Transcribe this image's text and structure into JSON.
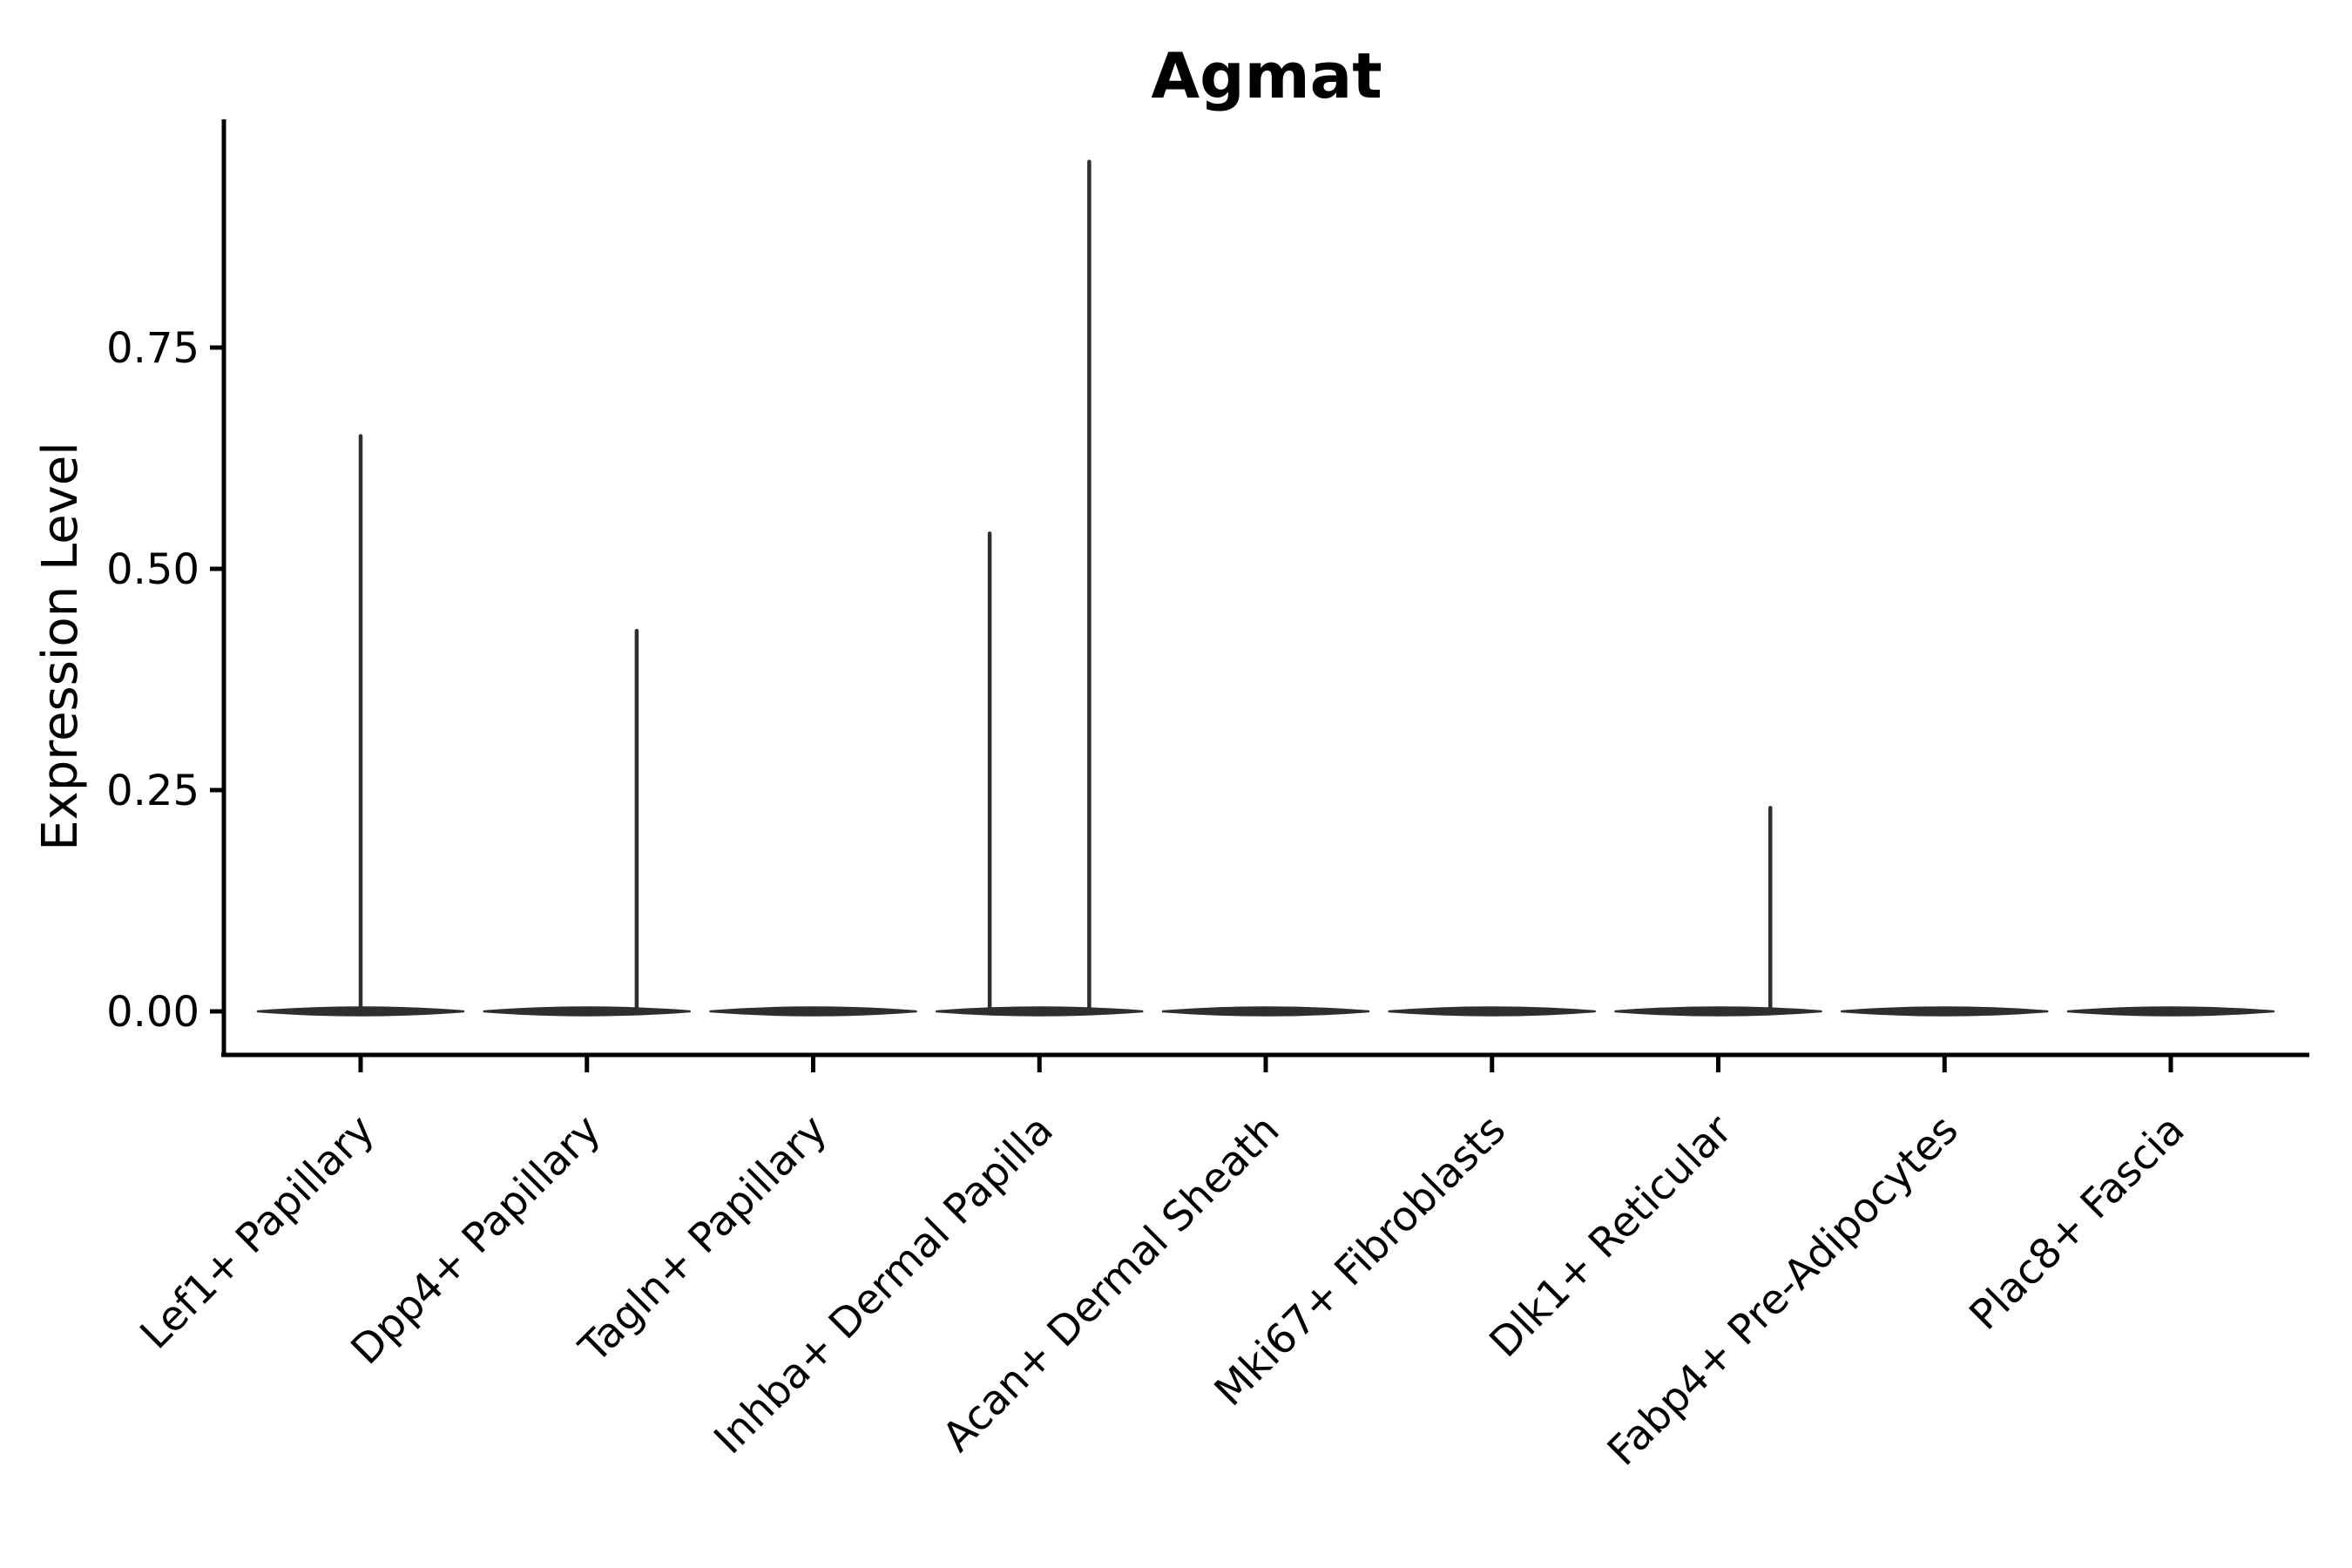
{
  "chart_data": {
    "type": "violin",
    "title": "Agmat",
    "xlabel": "",
    "ylabel": "Expression Level",
    "ylim": [
      -0.05,
      1.01
    ],
    "grid": false,
    "legend": "none",
    "y_ticks": [
      {
        "label": "0.00",
        "value": 0.0
      },
      {
        "label": "0.25",
        "value": 0.25
      },
      {
        "label": "0.50",
        "value": 0.5
      },
      {
        "label": "0.75",
        "value": 0.75
      }
    ],
    "categories": [
      "Lef1+ Papillary",
      "Dpp4+ Papillary",
      "Tagln+ Papillary",
      "Inhba+ Dermal Papilla",
      "Acan+ Dermal Sheath",
      "Mki67+ Fibroblasts",
      "Dlk1+ Reticular",
      "Fabp4+ Pre-Adipocytes",
      "Plac8+ Fascia"
    ],
    "violins": [
      {
        "category": "Lef1+ Papillary",
        "body": "flat-at-zero",
        "spikes": [
          {
            "x_offset": 0.0,
            "value": 0.65
          }
        ]
      },
      {
        "category": "Dpp4+ Papillary",
        "body": "flat-at-zero",
        "spikes": [
          {
            "x_offset": 0.22,
            "value": 0.43
          }
        ]
      },
      {
        "category": "Tagln+ Papillary",
        "body": "flat-at-zero",
        "spikes": []
      },
      {
        "category": "Inhba+ Dermal Papilla",
        "body": "flat-at-zero",
        "spikes": [
          {
            "x_offset": -0.22,
            "value": 0.54
          },
          {
            "x_offset": 0.22,
            "value": 0.96
          }
        ]
      },
      {
        "category": "Acan+ Dermal Sheath",
        "body": "flat-at-zero",
        "spikes": []
      },
      {
        "category": "Mki67+ Fibroblasts",
        "body": "flat-at-zero",
        "spikes": []
      },
      {
        "category": "Dlk1+ Reticular",
        "body": "flat-at-zero",
        "spikes": [
          {
            "x_offset": 0.23,
            "value": 0.23
          }
        ]
      },
      {
        "category": "Fabp4+ Pre-Adipocytes",
        "body": "flat-at-zero",
        "spikes": []
      },
      {
        "category": "Plac8+ Fascia",
        "body": "flat-at-zero",
        "spikes": []
      }
    ]
  },
  "colors": {
    "violin": "#2e2e2e",
    "axis": "#000000",
    "text": "#000000",
    "background": "#ffffff"
  }
}
